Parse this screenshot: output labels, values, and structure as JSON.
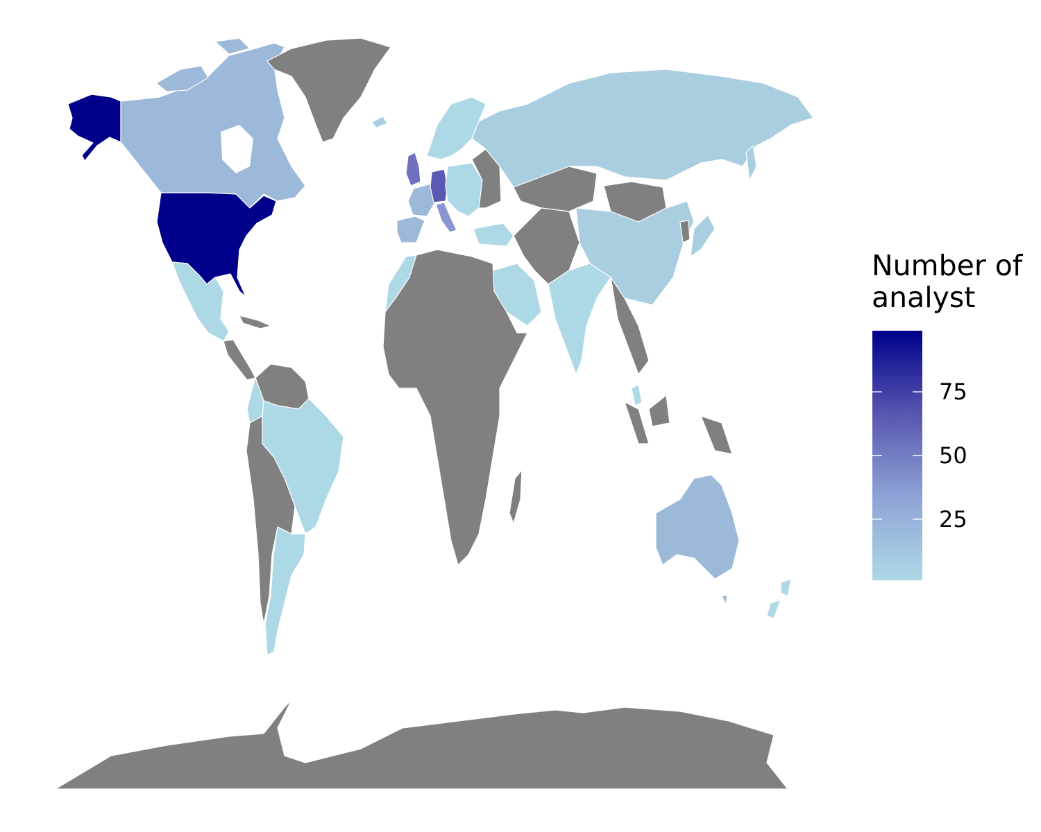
{
  "legend": {
    "title": "Number of\nanalyst",
    "ticks": [
      {
        "value": 25,
        "label": "25"
      },
      {
        "value": 50,
        "label": "50"
      },
      {
        "value": 75,
        "label": "75"
      }
    ],
    "range": [
      1,
      99
    ],
    "colors": {
      "low": "#add8e6",
      "mid": "#6a6fbf",
      "high": "#00008b"
    }
  },
  "map": {
    "no_data_color": "#808080",
    "border_color": "#ffffff",
    "regions": [
      {
        "name": "United States",
        "status": "high"
      },
      {
        "name": "Canada",
        "status": "mid-low"
      },
      {
        "name": "Germany",
        "status": "mid-high"
      },
      {
        "name": "United Kingdom",
        "status": "mid"
      },
      {
        "name": "France",
        "status": "mid-low"
      },
      {
        "name": "Spain",
        "status": "mid-low"
      },
      {
        "name": "Italy",
        "status": "mid"
      },
      {
        "name": "Russia",
        "status": "low"
      },
      {
        "name": "China",
        "status": "low"
      },
      {
        "name": "India",
        "status": "low"
      },
      {
        "name": "Australia",
        "status": "mid-low"
      },
      {
        "name": "Brazil",
        "status": "low"
      },
      {
        "name": "Argentina",
        "status": "low"
      },
      {
        "name": "Mexico",
        "status": "low"
      },
      {
        "name": "Greenland",
        "status": "no-data"
      },
      {
        "name": "Africa",
        "status": "no-data"
      },
      {
        "name": "Antarctica",
        "status": "no-data"
      }
    ]
  }
}
